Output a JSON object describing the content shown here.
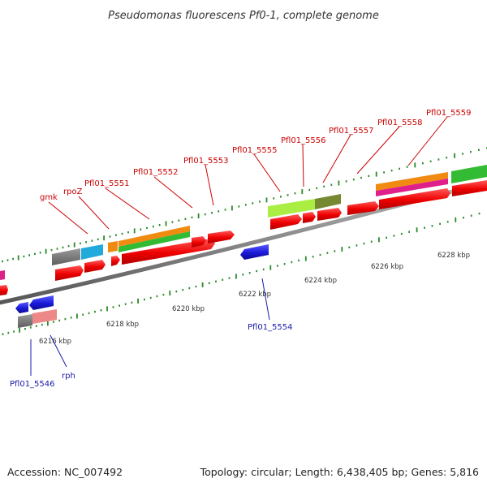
{
  "title": "Pseudomonas fluorescens Pf0-1, complete genome",
  "footer": {
    "accession": "Accession: NC_007492",
    "summary": "Topology: circular; Length: 6,438,405 bp; Genes: 5,816"
  },
  "axis_labels": [
    "6216 kbp",
    "6218 kbp",
    "6220 kbp",
    "6222 kbp",
    "6224 kbp",
    "6226 kbp",
    "6228 kbp"
  ],
  "top_labels": [
    "gmk",
    "rpoZ",
    "Pfl01_5551",
    "Pfl01_5552",
    "Pfl01_5553",
    "Pfl01_5555",
    "Pfl01_5556",
    "Pfl01_5557",
    "Pfl01_5558",
    "Pfl01_5559"
  ],
  "bottom_labels": [
    "Pfl01_5546",
    "rph",
    "Pfl01_5554"
  ],
  "colors": {
    "top_label": "#cc0000",
    "bottom_label": "#1a1aaa",
    "backbone": "#888888",
    "tick": "#2a8a2a",
    "forward_gene": "#ee0000",
    "reverse_gene": "#1a1acc",
    "orange": "#f08a10",
    "green": "#33bb33",
    "lime": "#aaee44",
    "olive": "#778833",
    "cyan": "#22aadd",
    "gray": "#777777",
    "pink": "#ee8888",
    "magenta": "#e0208a"
  }
}
